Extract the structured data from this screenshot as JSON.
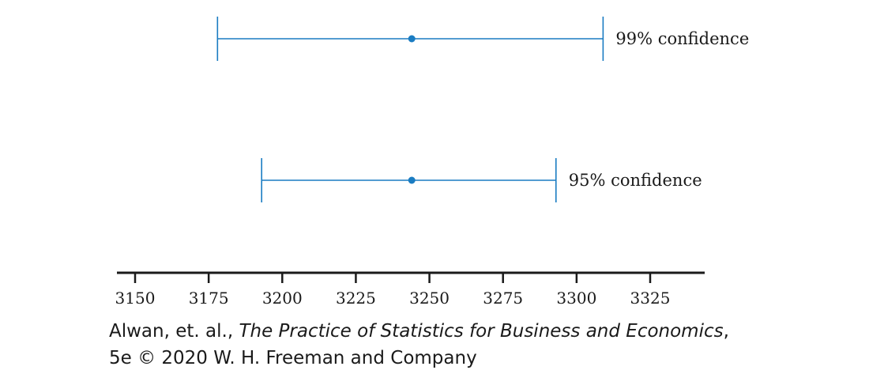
{
  "chart_data": {
    "type": "errorbar",
    "x": {
      "ticks": [
        3150,
        3175,
        3200,
        3225,
        3250,
        3275,
        3300,
        3325
      ]
    },
    "intervals": [
      {
        "label": "99% confidence",
        "estimate": 3244,
        "lower": 3178,
        "upper": 3309,
        "color": "#1a7cc2"
      },
      {
        "label": "95% confidence",
        "estimate": 3244,
        "lower": 3193,
        "upper": 3293,
        "color": "#1a7cc2"
      }
    ]
  },
  "caption": {
    "authors": "Alwan, et. al., ",
    "book_title": "The Practice of Statistics for Business and Economics",
    "comma": ",",
    "line2": "5e © 2020 W. H. Freeman and Company"
  }
}
